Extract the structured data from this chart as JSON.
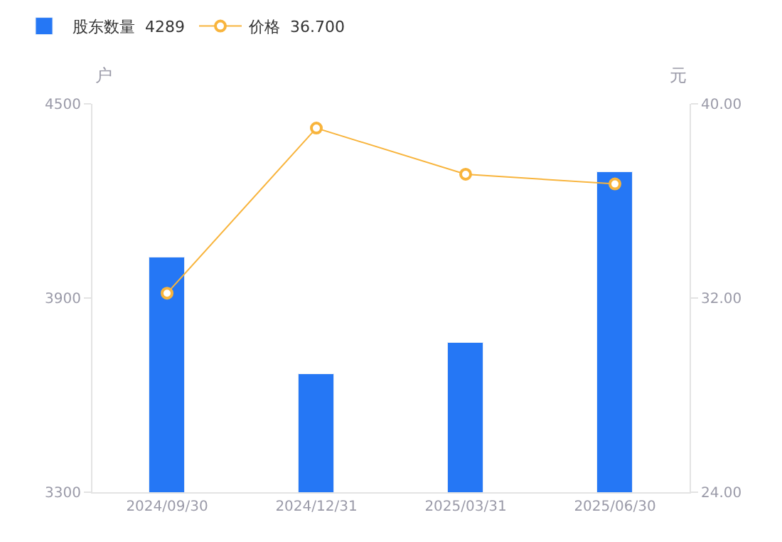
{
  "chart_data": {
    "type": "bar",
    "categories": [
      "2024/09/30",
      "2024/12/31",
      "2025/03/31",
      "2025/06/30"
    ],
    "series": [
      {
        "name": "股东数量  4289",
        "color": "#2577f5",
        "values": [
          4025,
          3665,
          3762,
          4289
        ]
      },
      {
        "name": "价格  36.700",
        "type": "line",
        "axis": "y2",
        "color": "#f8b43c",
        "marker": "circle",
        "values": [
          32.2,
          39.0,
          37.1,
          36.7
        ]
      }
    ],
    "ylabel": "户",
    "y2label": "元",
    "ylim": [
      3300,
      4500
    ],
    "yticks": [
      3300,
      3900,
      4500
    ],
    "y2lim": [
      24,
      40
    ],
    "y2ticks": [
      {
        "value": 24,
        "label": "24.00"
      },
      {
        "value": 32,
        "label": "32.00"
      },
      {
        "value": 40,
        "label": "40.00"
      }
    ],
    "legend": "top left"
  }
}
